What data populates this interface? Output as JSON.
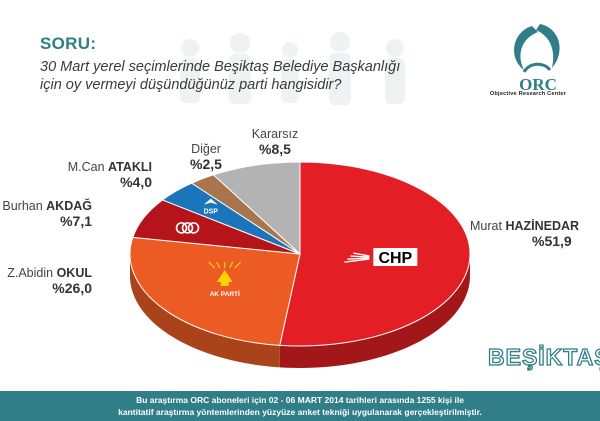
{
  "header": {
    "soru": "SORU:",
    "question_line1": "30 Mart yerel seçimlerinde Beşiktaş Belediye Başkanlığı",
    "question_line2": "için oy vermeyi düşündüğünüz parti hangisidir?"
  },
  "logo": {
    "text": "ORC",
    "subtitle": "Objective Research Center"
  },
  "brand": "BEŞİKTAŞ",
  "footer": {
    "line1": "Bu araştırma ORC aboneleri için 02 - 06 MART 2014 tarihleri arasında  1255 kişi ile",
    "line2": "kantitatif araştırma yöntemlerinden yüzyüze anket tekniği  uygulanarak gerçekleştirilmiştir."
  },
  "chart_data": {
    "type": "pie",
    "title": "",
    "slices": [
      {
        "party": "CHP",
        "first": "Murat",
        "last": "HAZİNEDAR",
        "value": 51.9,
        "label": "%51,9",
        "color": "#e31e24",
        "logo": "CHP"
      },
      {
        "party": "AK PARTİ",
        "first": "Z.Abidin",
        "last": "OKUL",
        "value": 26.0,
        "label": "%26,0",
        "color": "#ec5b24",
        "logo": "AK PARTİ"
      },
      {
        "party": "MHP",
        "first": "Burhan",
        "last": "AKDAĞ",
        "value": 7.1,
        "label": "%7,1",
        "color": "#b5141a",
        "logo": "MHP"
      },
      {
        "party": "DSP",
        "first": "M.Can",
        "last": "ATAKLI",
        "value": 4.0,
        "label": "%4,0",
        "color": "#1b75bb",
        "logo": "DSP"
      },
      {
        "party": "Diğer",
        "first": "Diğer",
        "last": "",
        "value": 2.5,
        "label": "%2,5",
        "color": "#a8754e",
        "logo": ""
      },
      {
        "party": "Kararsız",
        "first": "Kararsız",
        "last": "",
        "value": 8.5,
        "label": "%8,5",
        "color": "#b3b3b3",
        "logo": ""
      }
    ]
  }
}
